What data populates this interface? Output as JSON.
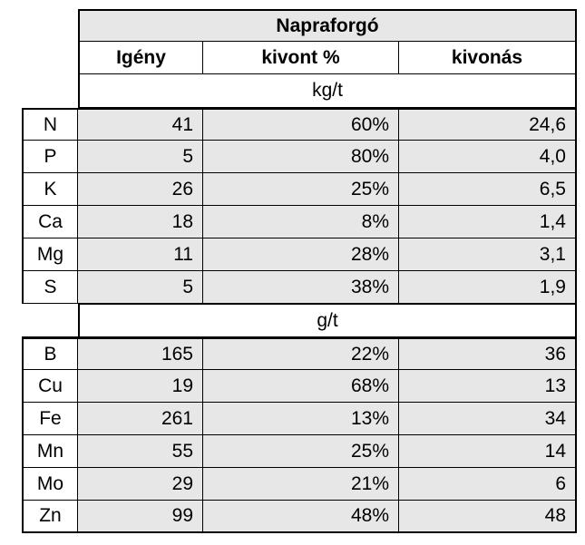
{
  "table": {
    "title": "Napraforgó",
    "headers": [
      "Igény",
      "kivont %",
      "kivonás"
    ],
    "unit_macro": "kg/t",
    "unit_micro": "g/t",
    "macro_rows": [
      {
        "element": "N",
        "igeny": "41",
        "kivont": "60%",
        "kivonas": "24,6"
      },
      {
        "element": "P",
        "igeny": "5",
        "kivont": "80%",
        "kivonas": "4,0"
      },
      {
        "element": "K",
        "igeny": "26",
        "kivont": "25%",
        "kivonas": "6,5"
      },
      {
        "element": "Ca",
        "igeny": "18",
        "kivont": "8%",
        "kivonas": "1,4"
      },
      {
        "element": "Mg",
        "igeny": "11",
        "kivont": "28%",
        "kivonas": "3,1"
      },
      {
        "element": "S",
        "igeny": "5",
        "kivont": "38%",
        "kivonas": "1,9"
      }
    ],
    "micro_rows": [
      {
        "element": "B",
        "igeny": "165",
        "kivont": "22%",
        "kivonas": "36"
      },
      {
        "element": "Cu",
        "igeny": "19",
        "kivont": "68%",
        "kivonas": "13"
      },
      {
        "element": "Fe",
        "igeny": "261",
        "kivont": "13%",
        "kivonas": "34"
      },
      {
        "element": "Mn",
        "igeny": "55",
        "kivont": "25%",
        "kivonas": "14"
      },
      {
        "element": "Mo",
        "igeny": "29",
        "kivont": "21%",
        "kivonas": "6"
      },
      {
        "element": "Zn",
        "igeny": "99",
        "kivont": "48%",
        "kivonas": "48"
      }
    ]
  }
}
